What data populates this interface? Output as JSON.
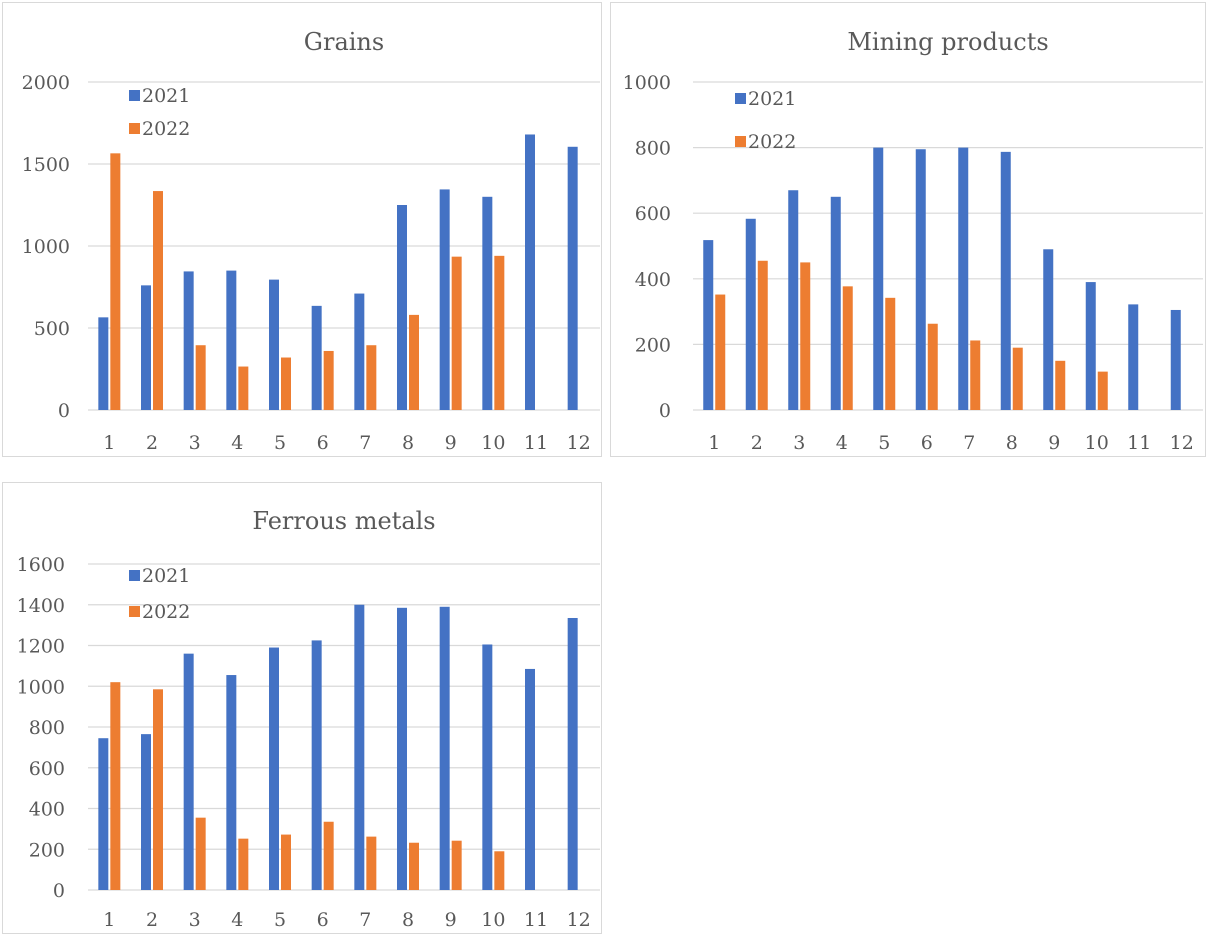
{
  "colors": {
    "series_2021": "#4472C4",
    "series_2022": "#ED7D31",
    "grid": "#d9d9d9",
    "text": "#595959"
  },
  "chart_data": [
    {
      "type": "bar",
      "title": "Grains",
      "categories": [
        "1",
        "2",
        "3",
        "4",
        "5",
        "6",
        "7",
        "8",
        "9",
        "10",
        "11",
        "12"
      ],
      "series": [
        {
          "name": "2021",
          "values": [
            565,
            760,
            845,
            850,
            795,
            635,
            710,
            1250,
            1345,
            1300,
            1680,
            1605
          ]
        },
        {
          "name": "2022",
          "values": [
            1565,
            1335,
            395,
            265,
            320,
            360,
            395,
            580,
            935,
            940,
            null,
            null
          ]
        }
      ],
      "ylim": [
        0,
        2000
      ],
      "yticks": [
        0,
        500,
        1000,
        1500,
        2000
      ],
      "grid": true,
      "legend": "top-left"
    },
    {
      "type": "bar",
      "title": "Mining products",
      "categories": [
        "1",
        "2",
        "3",
        "4",
        "5",
        "6",
        "7",
        "8",
        "9",
        "10",
        "11",
        "12"
      ],
      "series": [
        {
          "name": "2021",
          "values": [
            518,
            583,
            670,
            650,
            800,
            795,
            800,
            787,
            490,
            390,
            322,
            305
          ]
        },
        {
          "name": "2022",
          "values": [
            352,
            455,
            450,
            377,
            342,
            263,
            212,
            190,
            150,
            117,
            null,
            null
          ]
        }
      ],
      "ylim": [
        0,
        1000
      ],
      "yticks": [
        0,
        200,
        400,
        600,
        800,
        1000
      ],
      "grid": true,
      "legend": "top-left"
    },
    {
      "type": "bar",
      "title": "Ferrous metals",
      "categories": [
        "1",
        "2",
        "3",
        "4",
        "5",
        "6",
        "7",
        "8",
        "9",
        "10",
        "11",
        "12"
      ],
      "series": [
        {
          "name": "2021",
          "values": [
            745,
            765,
            1160,
            1055,
            1190,
            1225,
            1400,
            1385,
            1390,
            1205,
            1085,
            1335
          ]
        },
        {
          "name": "2022",
          "values": [
            1020,
            985,
            355,
            252,
            272,
            335,
            262,
            232,
            242,
            190,
            null,
            null
          ]
        }
      ],
      "ylim": [
        0,
        1600
      ],
      "yticks": [
        0,
        200,
        400,
        600,
        800,
        1000,
        1200,
        1400,
        1600
      ],
      "grid": true,
      "legend": "top-left"
    }
  ]
}
